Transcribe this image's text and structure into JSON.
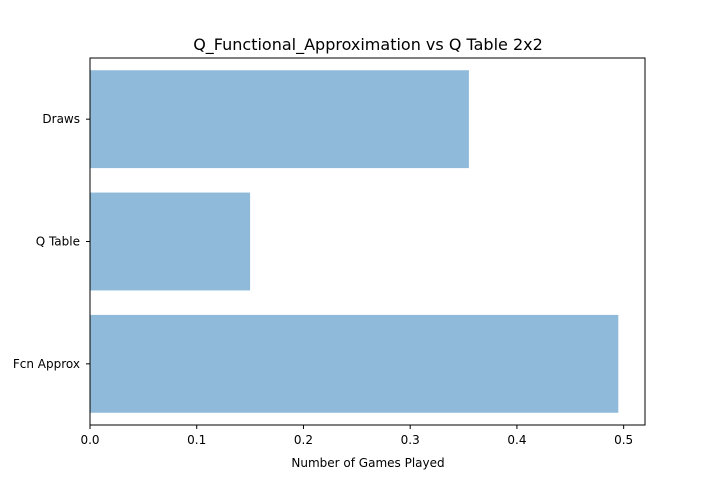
{
  "chart_data": {
    "type": "bar",
    "orientation": "horizontal",
    "title": "Q_Functional_Approximation vs Q Table 2x2",
    "xlabel": "Number of Games Played",
    "ylabel": "",
    "categories": [
      "Fcn Approx",
      "Q Table",
      "Draws"
    ],
    "values": [
      0.495,
      0.15,
      0.355
    ],
    "xlim": [
      0,
      0.52
    ],
    "xticks": [
      "0.0",
      "0.1",
      "0.2",
      "0.3",
      "0.4",
      "0.5"
    ],
    "grid": false,
    "legend": "none",
    "bar_color": "#8fbad9"
  }
}
